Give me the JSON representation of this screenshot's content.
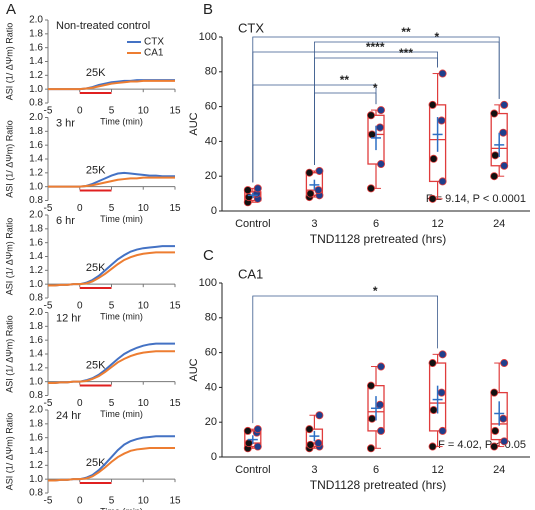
{
  "chart_data": [
    {
      "type": "line",
      "panel": "A",
      "title": "Non-treated control",
      "annotation": "25K",
      "xlabel": "Time (min)",
      "ylabel": "ASI (1/ ΔΨm) Ratio",
      "legend": true,
      "x": [
        -5,
        -4,
        -3,
        -2,
        -1,
        0,
        1,
        2,
        3,
        4,
        5,
        6,
        7,
        8,
        9,
        10,
        11,
        12,
        13,
        14,
        15
      ],
      "xlim": [
        -5,
        15
      ],
      "xticks": [
        -5,
        0,
        5,
        10,
        15
      ],
      "ylim": [
        0.8,
        2.0
      ],
      "yticks": [
        0.8,
        {
          "value": 1.0,
          "label": "1.0"
        },
        1.2,
        1.4,
        1.6,
        1.8,
        {
          "value": 2.0,
          "label": "2.0"
        }
      ],
      "stimulus": [
        0,
        5
      ],
      "stimulus_color": "#e02020",
      "series": [
        {
          "name": "CTX",
          "color": "#4472c4",
          "values": [
            1.0,
            1.0,
            1.0,
            1.0,
            1.0,
            1.0,
            1.01,
            1.03,
            1.06,
            1.08,
            1.1,
            1.11,
            1.12,
            1.12,
            1.13,
            1.13,
            1.13,
            1.13,
            1.13,
            1.13,
            1.13
          ]
        },
        {
          "name": "CA1",
          "color": "#ed7d31",
          "values": [
            1.0,
            1.0,
            1.0,
            1.0,
            1.0,
            1.0,
            1.01,
            1.02,
            1.04,
            1.06,
            1.08,
            1.09,
            1.1,
            1.11,
            1.11,
            1.12,
            1.12,
            1.12,
            1.12,
            1.12,
            1.12
          ]
        }
      ]
    },
    {
      "type": "line",
      "title": "3 hr",
      "annotation": "25K",
      "xlabel": "Time (min)",
      "ylabel": "ASI (1/ ΔΨm) Ratio",
      "legend": false,
      "x": [
        -5,
        -4,
        -3,
        -2,
        -1,
        0,
        1,
        2,
        3,
        4,
        5,
        6,
        7,
        8,
        9,
        10,
        11,
        12,
        13,
        14,
        15
      ],
      "xlim": [
        -5,
        15
      ],
      "xticks": [
        -5,
        0,
        5,
        10,
        15
      ],
      "ylim": [
        0.8,
        2.0
      ],
      "yticks": [
        0.8,
        {
          "value": 1.0,
          "label": "1.0"
        },
        1.2,
        1.4,
        1.6,
        1.8,
        {
          "value": 2.0,
          "label": "2.0"
        }
      ],
      "stimulus": [
        0,
        5
      ],
      "stimulus_color": "#e02020",
      "series": [
        {
          "name": "CTX",
          "color": "#4472c4",
          "values": [
            1.0,
            1.0,
            1.0,
            1.0,
            1.0,
            1.0,
            1.01,
            1.04,
            1.08,
            1.12,
            1.16,
            1.19,
            1.2,
            1.19,
            1.18,
            1.17,
            1.16,
            1.16,
            1.15,
            1.15,
            1.15
          ]
        },
        {
          "name": "CA1",
          "color": "#ed7d31",
          "values": [
            1.0,
            1.0,
            1.0,
            1.0,
            1.0,
            1.0,
            1.01,
            1.02,
            1.04,
            1.06,
            1.08,
            1.1,
            1.11,
            1.12,
            1.12,
            1.13,
            1.13,
            1.13,
            1.13,
            1.13,
            1.13
          ]
        }
      ]
    },
    {
      "type": "line",
      "title": "6 hr",
      "annotation": "25K",
      "xlabel": "Time (min)",
      "ylabel": "ASI (1/ ΔΨm) Ratio",
      "legend": false,
      "x": [
        -5,
        -4,
        -3,
        -2,
        -1,
        0,
        1,
        2,
        3,
        4,
        5,
        6,
        7,
        8,
        9,
        10,
        11,
        12,
        13,
        14,
        15
      ],
      "xlim": [
        -5,
        15
      ],
      "xticks": [
        -5,
        0,
        5,
        10,
        15
      ],
      "ylim": [
        0.8,
        2.0
      ],
      "yticks": [
        0.8,
        {
          "value": 1.0,
          "label": "1.0"
        },
        1.2,
        1.4,
        1.6,
        1.8,
        {
          "value": 2.0,
          "label": "2.0"
        }
      ],
      "stimulus": [
        0,
        5
      ],
      "stimulus_color": "#e02020",
      "series": [
        {
          "name": "CTX",
          "color": "#4472c4",
          "values": [
            0.98,
            0.98,
            0.99,
            0.99,
            1.0,
            1.0,
            1.02,
            1.06,
            1.12,
            1.2,
            1.28,
            1.36,
            1.42,
            1.47,
            1.5,
            1.52,
            1.53,
            1.54,
            1.55,
            1.55,
            1.55
          ]
        },
        {
          "name": "CA1",
          "color": "#ed7d31",
          "values": [
            0.98,
            0.98,
            0.99,
            0.99,
            1.0,
            1.0,
            1.01,
            1.04,
            1.09,
            1.15,
            1.22,
            1.29,
            1.35,
            1.39,
            1.42,
            1.44,
            1.45,
            1.46,
            1.46,
            1.46,
            1.46
          ]
        }
      ]
    },
    {
      "type": "line",
      "title": "12 hr",
      "annotation": "25K",
      "xlabel": "Time (min)",
      "ylabel": "ASI (1/ ΔΨm) Ratio",
      "legend": false,
      "x": [
        -5,
        -4,
        -3,
        -2,
        -1,
        0,
        1,
        2,
        3,
        4,
        5,
        6,
        7,
        8,
        9,
        10,
        11,
        12,
        13,
        14,
        15
      ],
      "xlim": [
        -5,
        15
      ],
      "xticks": [
        -5,
        0,
        5,
        10,
        15
      ],
      "ylim": [
        0.8,
        2.0
      ],
      "yticks": [
        0.8,
        {
          "value": 1.0,
          "label": "1.0"
        },
        1.2,
        1.4,
        1.6,
        1.8,
        {
          "value": 2.0,
          "label": "2.0"
        }
      ],
      "stimulus": [
        0,
        5
      ],
      "stimulus_color": "#e02020",
      "series": [
        {
          "name": "CTX",
          "color": "#4472c4",
          "values": [
            0.98,
            0.98,
            0.99,
            0.99,
            1.0,
            1.0,
            1.02,
            1.05,
            1.1,
            1.17,
            1.25,
            1.33,
            1.4,
            1.45,
            1.49,
            1.52,
            1.54,
            1.55,
            1.55,
            1.55,
            1.55
          ]
        },
        {
          "name": "CA1",
          "color": "#ed7d31",
          "values": [
            0.98,
            0.98,
            0.99,
            0.99,
            1.0,
            1.0,
            1.01,
            1.04,
            1.08,
            1.14,
            1.21,
            1.28,
            1.33,
            1.37,
            1.4,
            1.42,
            1.43,
            1.44,
            1.44,
            1.44,
            1.44
          ]
        }
      ]
    },
    {
      "type": "line",
      "title": "24 hr",
      "annotation": "25K",
      "xlabel": "Time (min)",
      "ylabel": "ASI (1/ ΔΨm) Ratio",
      "legend": false,
      "x": [
        -5,
        -4,
        -3,
        -2,
        -1,
        0,
        1,
        2,
        3,
        4,
        5,
        6,
        7,
        8,
        9,
        10,
        11,
        12,
        13,
        14,
        15
      ],
      "xlim": [
        -5,
        15
      ],
      "xticks": [
        -5,
        0,
        5,
        10,
        15
      ],
      "ylim": [
        0.8,
        2.0
      ],
      "yticks": [
        0.8,
        {
          "value": 1.0,
          "label": "1.0"
        },
        1.2,
        1.4,
        1.6,
        1.8,
        {
          "value": 2.0,
          "label": "2.0"
        }
      ],
      "stimulus": [
        0,
        5
      ],
      "stimulus_color": "#e02020",
      "series": [
        {
          "name": "CTX",
          "color": "#4472c4",
          "values": [
            0.98,
            0.98,
            0.99,
            0.99,
            1.0,
            1.0,
            1.02,
            1.06,
            1.13,
            1.22,
            1.32,
            1.42,
            1.5,
            1.55,
            1.58,
            1.6,
            1.61,
            1.62,
            1.62,
            1.62,
            1.62
          ]
        },
        {
          "name": "CA1",
          "color": "#ed7d31",
          "values": [
            0.98,
            0.98,
            0.99,
            0.99,
            1.0,
            1.0,
            1.01,
            1.04,
            1.1,
            1.17,
            1.25,
            1.32,
            1.37,
            1.41,
            1.43,
            1.44,
            1.45,
            1.45,
            1.45,
            1.45,
            1.45
          ]
        }
      ]
    },
    {
      "type": "box",
      "panel": "B",
      "title": "CTX",
      "xlabel": "TND1128 pretreated (hrs)",
      "ylabel": "AUC",
      "annotation": "F = 9.14, P < 0.0001",
      "categories": [
        "Control",
        "3",
        "6",
        "12",
        "24"
      ],
      "ylim": [
        0,
        100
      ],
      "yticks": [
        0,
        20,
        40,
        60,
        80,
        100
      ],
      "box_color": "#e03c3c",
      "mean_color": "#2e6fc4",
      "boxes": [
        {
          "min": 5,
          "q1": 6,
          "median": 8,
          "q3": 11,
          "max": 13,
          "mean": 9,
          "sem": 1.5,
          "points": [
            5,
            7,
            8,
            10,
            12,
            13
          ]
        },
        {
          "min": 8,
          "q1": 9,
          "median": 12,
          "q3": 22,
          "max": 23,
          "mean": 15,
          "sem": 3,
          "points": [
            8,
            9,
            10,
            12,
            22,
            23
          ]
        },
        {
          "min": 13,
          "q1": 27,
          "median": 44,
          "q3": 55,
          "max": 58,
          "mean": 42,
          "sem": 7,
          "points": [
            13,
            27,
            44,
            48,
            55,
            58
          ]
        },
        {
          "min": 7,
          "q1": 17,
          "median": 41,
          "q3": 61,
          "max": 79,
          "mean": 44,
          "sem": 10,
          "points": [
            7,
            17,
            30,
            52,
            61,
            79
          ]
        },
        {
          "min": 20,
          "q1": 26,
          "median": 36,
          "q3": 56,
          "max": 61,
          "mean": 38,
          "sem": 7,
          "points": [
            20,
            26,
            32,
            45,
            56,
            61
          ]
        }
      ],
      "comparisons": [
        {
          "from": "Control",
          "to": "24",
          "label": "**"
        },
        {
          "from": "3",
          "to": "24",
          "label": "*"
        },
        {
          "from": "Control",
          "to": "12",
          "label": "****"
        },
        {
          "from": "3",
          "to": "12",
          "label": "***"
        },
        {
          "from": "Control",
          "to": "6",
          "label": "**"
        },
        {
          "from": "3",
          "to": "6",
          "label": "*"
        }
      ]
    },
    {
      "type": "box",
      "panel": "C",
      "title": "CA1",
      "xlabel": "TND1128 pretreated (hrs)",
      "ylabel": "AUC",
      "annotation": "F = 4.02,  P < 0.05",
      "categories": [
        "Control",
        "3",
        "6",
        "12",
        "24"
      ],
      "ylim": [
        0,
        100
      ],
      "yticks": [
        0,
        20,
        40,
        60,
        80,
        100
      ],
      "box_color": "#e03c3c",
      "mean_color": "#2e6fc4",
      "boxes": [
        {
          "min": 5,
          "q1": 6,
          "median": 8,
          "q3": 15,
          "max": 16,
          "mean": 10,
          "sem": 2.5,
          "points": [
            5,
            6,
            8,
            14,
            15,
            16
          ]
        },
        {
          "min": 5,
          "q1": 6,
          "median": 8,
          "q3": 16,
          "max": 24,
          "mean": 12,
          "sem": 3,
          "points": [
            5,
            6,
            7,
            8,
            16,
            24
          ]
        },
        {
          "min": 5,
          "q1": 15,
          "median": 26,
          "q3": 41,
          "max": 52,
          "mean": 28,
          "sem": 7,
          "points": [
            5,
            15,
            22,
            30,
            41,
            52
          ]
        },
        {
          "min": 6,
          "q1": 15,
          "median": 31,
          "q3": 54,
          "max": 59,
          "mean": 33,
          "sem": 8,
          "points": [
            6,
            15,
            27,
            37,
            54,
            59
          ]
        },
        {
          "min": 6,
          "q1": 10,
          "median": 19,
          "q3": 37,
          "max": 54,
          "mean": 25,
          "sem": 7,
          "points": [
            6,
            9,
            15,
            22,
            37,
            54
          ]
        }
      ],
      "comparisons": [
        {
          "from": "Control",
          "to": "12",
          "label": "*"
        }
      ]
    }
  ]
}
